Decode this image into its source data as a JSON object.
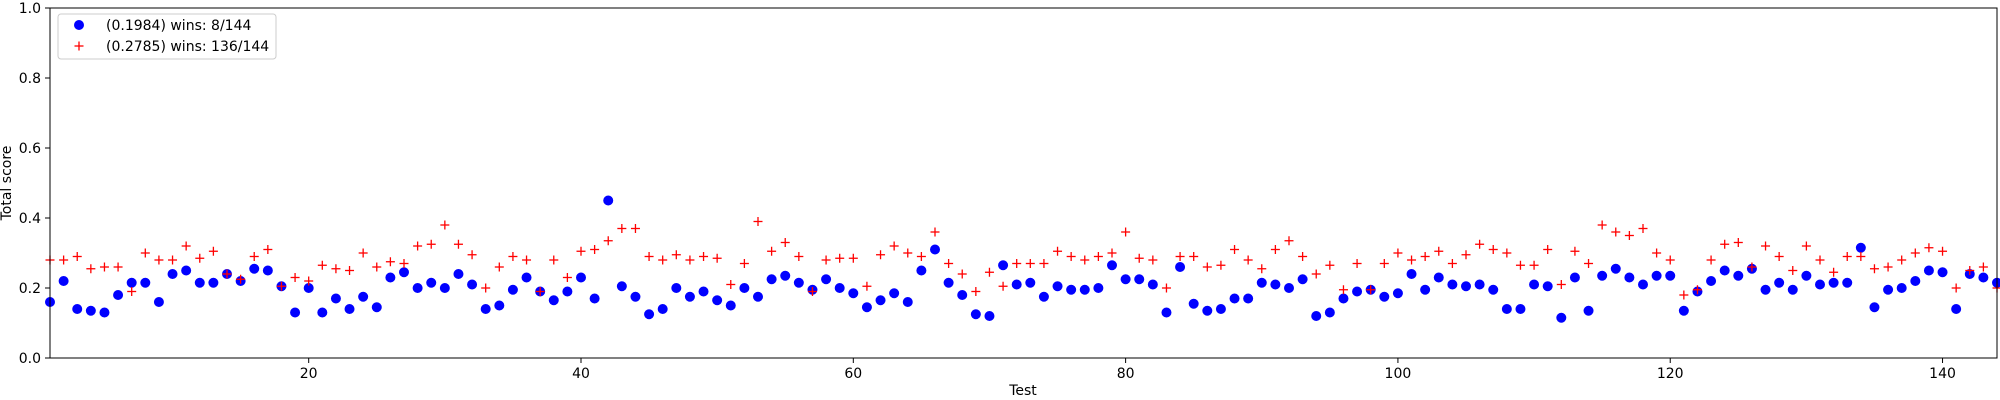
{
  "chart_data": {
    "type": "scatter",
    "title": "",
    "xlabel": "Test",
    "ylabel": "Total score",
    "xlim": [
      1,
      144
    ],
    "ylim": [
      0.0,
      1.0
    ],
    "xticks": [
      20,
      40,
      60,
      80,
      100,
      120,
      140
    ],
    "xtick_labels": [
      "20",
      "40",
      "60",
      "80",
      "100",
      "120",
      "140"
    ],
    "yticks": [
      0.0,
      0.2,
      0.4,
      0.6,
      0.8,
      1.0
    ],
    "ytick_labels": [
      "0.0",
      "0.2",
      "0.4",
      "0.6",
      "0.8",
      "1.0"
    ],
    "grid": false,
    "legend_position": "top-left",
    "series": [
      {
        "name": "(0.1984) wins: 8/144",
        "marker": "circle",
        "color": "#0000ff",
        "values": [
          0.16,
          0.22,
          0.14,
          0.135,
          0.13,
          0.18,
          0.215,
          0.215,
          0.16,
          0.24,
          0.25,
          0.215,
          0.215,
          0.24,
          0.22,
          0.255,
          0.25,
          0.205,
          0.13,
          0.2,
          0.13,
          0.17,
          0.14,
          0.175,
          0.145,
          0.23,
          0.245,
          0.2,
          0.215,
          0.2,
          0.24,
          0.21,
          0.14,
          0.15,
          0.195,
          0.23,
          0.19,
          0.165,
          0.19,
          0.23,
          0.17,
          0.45,
          0.205,
          0.175,
          0.125,
          0.14,
          0.2,
          0.175,
          0.19,
          0.165,
          0.15,
          0.2,
          0.175,
          0.225,
          0.235,
          0.215,
          0.195,
          0.225,
          0.2,
          0.185,
          0.145,
          0.165,
          0.185,
          0.16,
          0.25,
          0.31,
          0.215,
          0.18,
          0.125,
          0.12,
          0.265,
          0.21,
          0.215,
          0.175,
          0.205,
          0.195,
          0.195,
          0.2,
          0.265,
          0.225,
          0.225,
          0.21,
          0.13,
          0.26,
          0.155,
          0.135,
          0.14,
          0.17,
          0.17,
          0.215,
          0.21,
          0.2,
          0.225,
          0.12,
          0.13,
          0.17,
          0.19,
          0.195,
          0.175,
          0.185,
          0.24,
          0.195,
          0.23,
          0.21,
          0.205,
          0.21,
          0.195,
          0.14,
          0.14,
          0.21,
          0.205,
          0.115,
          0.23,
          0.135,
          0.235,
          0.255,
          0.23,
          0.21,
          0.235,
          0.235,
          0.135,
          0.19,
          0.22,
          0.25,
          0.235,
          0.255,
          0.195,
          0.215,
          0.195,
          0.235,
          0.21,
          0.215,
          0.215,
          0.315,
          0.145,
          0.195,
          0.2,
          0.22,
          0.25,
          0.245,
          0.14,
          0.24,
          0.23,
          0.215
        ]
      },
      {
        "name": "(0.2785) wins: 136/144",
        "marker": "plus",
        "color": "#ff0000",
        "values": [
          0.28,
          0.28,
          0.29,
          0.255,
          0.26,
          0.26,
          0.19,
          0.3,
          0.28,
          0.28,
          0.32,
          0.285,
          0.305,
          0.24,
          0.225,
          0.29,
          0.31,
          0.205,
          0.23,
          0.22,
          0.265,
          0.255,
          0.25,
          0.3,
          0.26,
          0.275,
          0.27,
          0.32,
          0.325,
          0.38,
          0.325,
          0.295,
          0.2,
          0.26,
          0.29,
          0.28,
          0.19,
          0.28,
          0.23,
          0.305,
          0.31,
          0.335,
          0.37,
          0.37,
          0.29,
          0.28,
          0.295,
          0.28,
          0.29,
          0.285,
          0.21,
          0.27,
          0.39,
          0.305,
          0.33,
          0.29,
          0.19,
          0.28,
          0.285,
          0.285,
          0.205,
          0.295,
          0.32,
          0.3,
          0.29,
          0.36,
          0.27,
          0.24,
          0.19,
          0.245,
          0.205,
          0.27,
          0.27,
          0.27,
          0.305,
          0.29,
          0.28,
          0.29,
          0.3,
          0.36,
          0.285,
          0.28,
          0.2,
          0.29,
          0.29,
          0.26,
          0.265,
          0.31,
          0.28,
          0.255,
          0.31,
          0.335,
          0.29,
          0.24,
          0.265,
          0.195,
          0.27,
          0.195,
          0.27,
          0.3,
          0.28,
          0.29,
          0.305,
          0.27,
          0.295,
          0.325,
          0.31,
          0.3,
          0.265,
          0.265,
          0.31,
          0.21,
          0.305,
          0.27,
          0.38,
          0.36,
          0.35,
          0.37,
          0.3,
          0.28,
          0.18,
          0.195,
          0.28,
          0.325,
          0.33,
          0.26,
          0.32,
          0.29,
          0.25,
          0.32,
          0.28,
          0.245,
          0.29,
          0.29,
          0.255,
          0.26,
          0.28,
          0.3,
          0.315,
          0.305,
          0.2,
          0.25,
          0.26,
          0.2
        ]
      }
    ]
  }
}
